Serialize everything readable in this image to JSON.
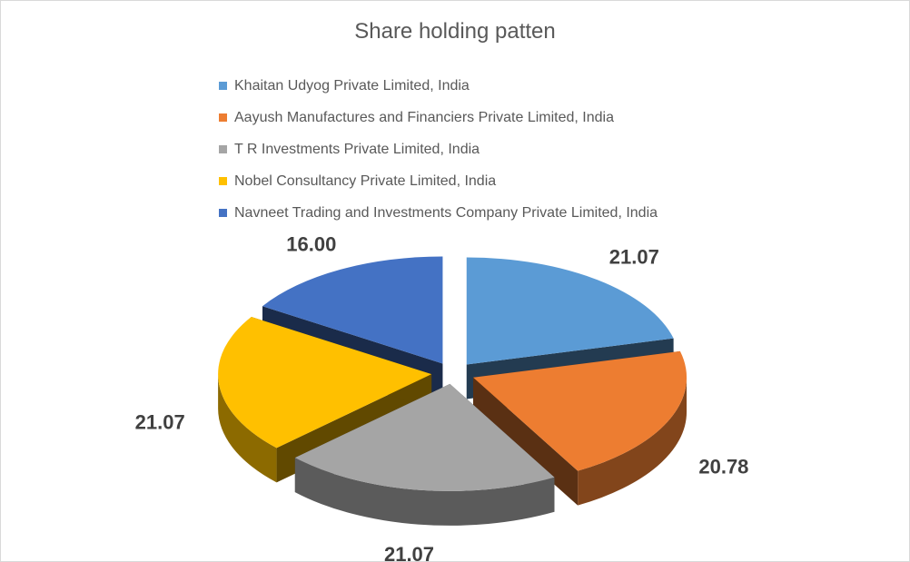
{
  "chart_data": {
    "type": "pie",
    "title": "Share holding patten",
    "legend_position": "top",
    "categories": [
      "Khaitan Udyog Private Limited, India",
      "Aayush Manufactures and Financiers Private Limited, India",
      "T R Investments Private Limited, India",
      "Nobel Consultancy Private Limited, India",
      "Navneet Trading and Investments Company Private Limited, India"
    ],
    "values": [
      21.07,
      20.78,
      21.07,
      21.07,
      16.0
    ],
    "value_labels": [
      "21.07",
      "20.78",
      "21.07",
      "21.07",
      "16.00"
    ],
    "colors": [
      "#5b9bd5",
      "#ed7d31",
      "#a5a5a5",
      "#ffc000",
      "#4472c4"
    ]
  }
}
